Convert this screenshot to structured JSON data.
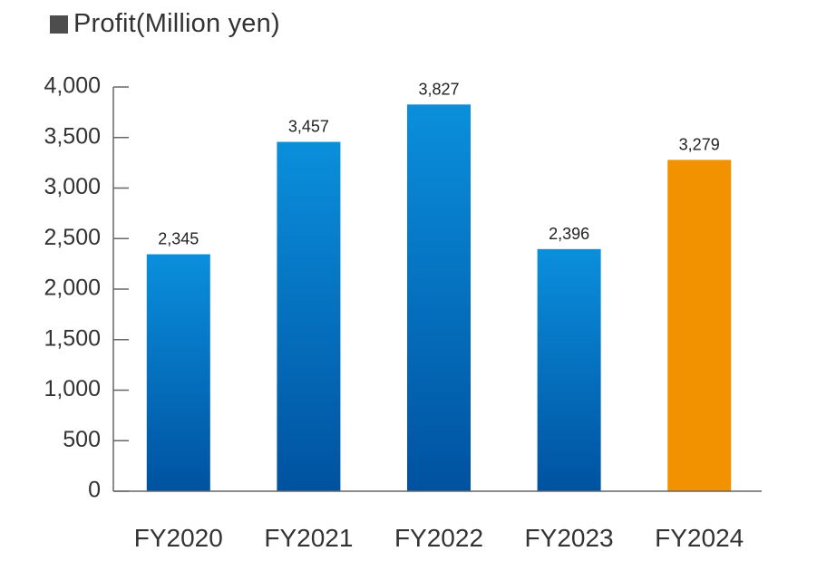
{
  "colors": {
    "bar_top": "#0a8fdc",
    "bar_bottom": "#0052a0",
    "highlight": "#f39200",
    "axis": "#666666",
    "text": "#333333"
  },
  "chart_data": {
    "type": "bar",
    "title": "■Profit(Million yen)",
    "title_text": "Profit(Million yen)",
    "categories": [
      "FY2020",
      "FY2021",
      "FY2022",
      "FY2023",
      "FY2024"
    ],
    "values": [
      2345,
      3457,
      3827,
      2396,
      3279
    ],
    "data_labels": [
      "2,345",
      "3,457",
      "3,827",
      "2,396",
      "3,279"
    ],
    "highlight_index": 4,
    "ylim": [
      0,
      4000
    ],
    "yticks": [
      0,
      500,
      1000,
      1500,
      2000,
      2500,
      3000,
      3500,
      4000
    ],
    "ytick_labels": [
      "0",
      "500",
      "1,000",
      "1,500",
      "2,000",
      "2,500",
      "3,000",
      "3,500",
      "4,000"
    ],
    "xlabel": "",
    "ylabel": "",
    "grid": false,
    "legend": "none"
  }
}
